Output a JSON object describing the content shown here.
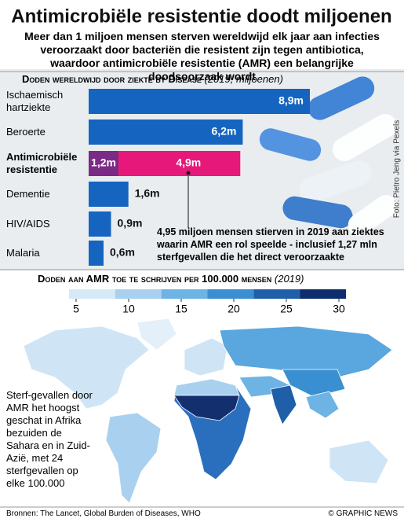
{
  "title": "Antimicrobiële resistentie doodt miljoenen",
  "subtitle": "Meer dan 1 miljoen mensen sterven wereldwijd elk jaar aan infecties veroorzaakt door bacteriën die resistent zijn tegen antibiotica, waardoor antimicrobiële resistentie (AMR) een belangrijke doodsoorzaak wordt",
  "photo_credit": "Foto: Pietro Jeng via Pexels",
  "chart_data": [
    {
      "type": "bar",
      "orientation": "horizontal",
      "stacked": true,
      "title": "Doden wereldwijd door ziekte by Disease",
      "subtitle": "(2019, miljoenen)",
      "categories": [
        "Ischaemisch hartziekte",
        "Beroerte",
        "Antimicrobiële resistentie",
        "Dementie",
        "HIV/AIDS",
        "Malaria"
      ],
      "series": [
        {
          "color": "#1565c0",
          "values": [
            8.9,
            6.2,
            1.2,
            1.6,
            0.9,
            0.6
          ],
          "value_labels": [
            "8,9m",
            "6,2m",
            "1,2m",
            "1,6m",
            "0,9m",
            "0,6m"
          ],
          "colors": [
            null,
            null,
            "#7b2a86",
            null,
            null,
            null
          ]
        },
        {
          "color": "#e6197a",
          "values": [
            null,
            null,
            4.9,
            null,
            null,
            null
          ],
          "value_labels": [
            null,
            null,
            "4,9m",
            null,
            null,
            null
          ]
        }
      ],
      "highlight": "Antimicrobiële resistentie",
      "annotation": "4,95 miljoen mensen stierven in 2019 aan ziektes waarin AMR een rol speelde - inclusief 1,27 mln sterfgevallen die het direct veroorzaakte"
    },
    {
      "type": "map",
      "title": "Doden aan AMR toe te schrijven per 100.000 mensen",
      "subtitle": "(2019)",
      "clim": [
        5,
        30
      ],
      "cticks": [
        5,
        10,
        15,
        20,
        25,
        30
      ],
      "colors": [
        "#d6e9f7",
        "#a9d1ef",
        "#6db3e3",
        "#3a8fd1",
        "#1f5ea8",
        "#0d2d6e"
      ],
      "annotation": "Sterf-gevallen door AMR het hoogst geschat in Afrika bezuiden de Sahara en in Zuid-Azië, met 24 sterfgevallen op elke 100.000"
    }
  ],
  "footer": {
    "sources": "Bronnen: The Lancet, Global Burden of Diseases, WHO",
    "credit": "© GRAPHIC NEWS"
  }
}
